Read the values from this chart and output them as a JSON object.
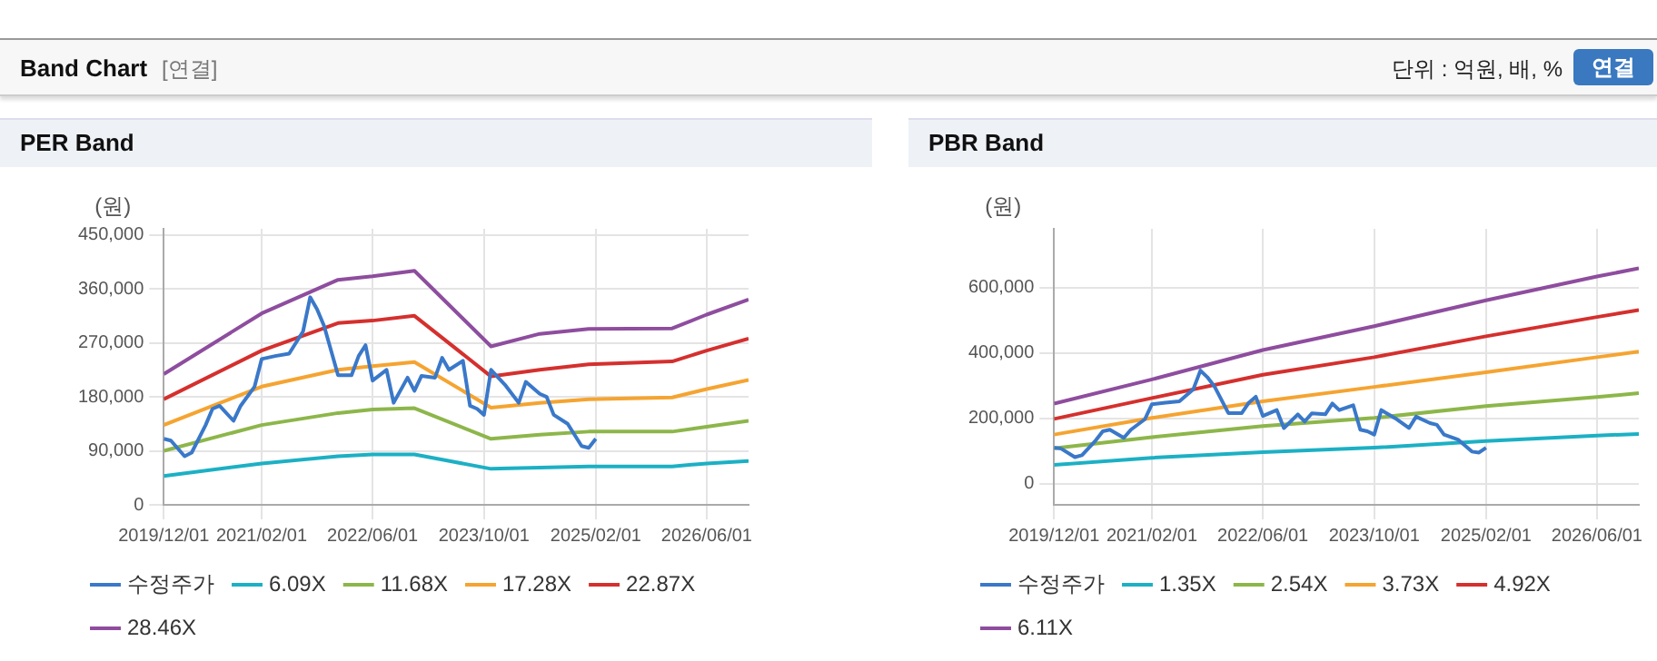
{
  "chart_data": [
    {
      "type": "line",
      "title": "PER Band",
      "ylabel": "(원)",
      "annotations": [
        "Band Chart",
        "[연결]",
        "단위 : 억원, 배, %",
        "연결"
      ],
      "xlim": [
        "2019-12-01",
        "2026-12-01"
      ],
      "xticks": [
        {
          "value": "2019-12-01",
          "label": "2019/12/01"
        },
        {
          "value": "2021-02-01",
          "label": "2021/02/01"
        },
        {
          "value": "2022-06-01",
          "label": "2022/06/01"
        },
        {
          "value": "2023-10-01",
          "label": "2023/10/01"
        },
        {
          "value": "2025-02-01",
          "label": "2025/02/01"
        },
        {
          "value": "2026-06-01",
          "label": "2026/06/01"
        }
      ],
      "ylim": [
        0,
        460000
      ],
      "yticks": [
        {
          "value": 0,
          "label": "0"
        },
        {
          "value": 90000,
          "label": "90,000"
        },
        {
          "value": 180000,
          "label": "180,000"
        },
        {
          "value": 270000,
          "label": "270,000"
        },
        {
          "value": 360000,
          "label": "360,000"
        },
        {
          "value": 450000,
          "label": "450,000"
        }
      ],
      "grid": true,
      "legend": "bottom",
      "marker": "none",
      "line_style": "solid",
      "series": [
        {
          "name": "수정주가",
          "color": "#3a78c9",
          "x": [
            "2019-12",
            "2020-01",
            "2020-03",
            "2020-04",
            "2020-06",
            "2020-07",
            "2020-08",
            "2020-10",
            "2020-11",
            "2021-01",
            "2021-02",
            "2021-04",
            "2021-06",
            "2021-08",
            "2021-09",
            "2021-10",
            "2021-11",
            "2022-01",
            "2022-03",
            "2022-04",
            "2022-05",
            "2022-06",
            "2022-08",
            "2022-09",
            "2022-11",
            "2022-12",
            "2023-01",
            "2023-03",
            "2023-04",
            "2023-05",
            "2023-07",
            "2023-08",
            "2023-09",
            "2023-10",
            "2023-11",
            "2024-01",
            "2024-03",
            "2024-04",
            "2024-06",
            "2024-07",
            "2024-08",
            "2024-10",
            "2024-12",
            "2025-01",
            "2025-02"
          ],
          "values": [
            110000,
            107000,
            81000,
            87000,
            133000,
            160000,
            165000,
            140000,
            165000,
            197000,
            243000,
            248000,
            252000,
            289000,
            346000,
            326000,
            298000,
            216000,
            216000,
            248000,
            266000,
            207000,
            225000,
            170000,
            212000,
            190000,
            215000,
            212000,
            245000,
            225000,
            240000,
            165000,
            160000,
            150000,
            225000,
            200000,
            170000,
            205000,
            185000,
            180000,
            150000,
            135000,
            98000,
            95000,
            110000
          ]
        },
        {
          "name": "6.09X",
          "color": "#1cb0c4",
          "x": [
            "2019-12",
            "2021-02",
            "2022-01",
            "2022-06",
            "2022-12",
            "2023-11",
            "2024-06",
            "2025-01",
            "2026-01",
            "2026-06",
            "2026-12"
          ],
          "values": [
            48000,
            69000,
            81000,
            84000,
            84000,
            60000,
            62000,
            64000,
            64000,
            69000,
            73000
          ]
        },
        {
          "name": "11.68X",
          "color": "#8db64a",
          "x": [
            "2019-12",
            "2021-02",
            "2022-01",
            "2022-06",
            "2022-12",
            "2023-11",
            "2024-06",
            "2025-01",
            "2026-01",
            "2026-06",
            "2026-12"
          ],
          "values": [
            90000,
            133000,
            153000,
            159000,
            161000,
            110000,
            117000,
            122000,
            122000,
            130000,
            140000
          ]
        },
        {
          "name": "17.28X",
          "color": "#f5a431",
          "x": [
            "2019-12",
            "2021-02",
            "2022-01",
            "2022-06",
            "2022-12",
            "2023-11",
            "2024-06",
            "2025-01",
            "2026-01",
            "2026-06",
            "2026-12"
          ],
          "values": [
            133000,
            197000,
            225000,
            231000,
            238000,
            162000,
            170000,
            176000,
            179000,
            193000,
            208000
          ]
        },
        {
          "name": "22.87X",
          "color": "#d4302e",
          "x": [
            "2019-12",
            "2021-02",
            "2022-01",
            "2022-06",
            "2022-12",
            "2023-11",
            "2024-06",
            "2025-01",
            "2026-01",
            "2026-06",
            "2026-12"
          ],
          "values": [
            176000,
            257000,
            303000,
            307000,
            315000,
            214000,
            225000,
            234000,
            239000,
            257000,
            277000
          ]
        },
        {
          "name": "28.46X",
          "color": "#8e4d9e",
          "x": [
            "2019-12",
            "2021-02",
            "2022-01",
            "2022-06",
            "2022-12",
            "2023-11",
            "2024-06",
            "2025-01",
            "2026-01",
            "2026-06",
            "2026-12"
          ],
          "values": [
            218000,
            319000,
            375000,
            381000,
            390000,
            264000,
            285000,
            293000,
            294000,
            317000,
            342000
          ]
        }
      ]
    },
    {
      "type": "line",
      "title": "PBR Band",
      "ylabel": "(원)",
      "xlim": [
        "2019-12-01",
        "2026-12-01"
      ],
      "xticks": [
        {
          "value": "2019-12-01",
          "label": "2019/12/01"
        },
        {
          "value": "2021-02-01",
          "label": "2021/02/01"
        },
        {
          "value": "2022-06-01",
          "label": "2022/06/01"
        },
        {
          "value": "2023-10-01",
          "label": "2023/10/01"
        },
        {
          "value": "2025-02-01",
          "label": "2025/02/01"
        },
        {
          "value": "2026-06-01",
          "label": "2026/06/01"
        }
      ],
      "ylim": [
        -65000,
        780000
      ],
      "yticks": [
        {
          "value": 0,
          "label": "0"
        },
        {
          "value": 200000,
          "label": "200,000"
        },
        {
          "value": 400000,
          "label": "400,000"
        },
        {
          "value": 600000,
          "label": "600,000"
        }
      ],
      "grid": true,
      "legend": "bottom",
      "marker": "none",
      "line_style": "solid",
      "series": [
        {
          "name": "수정주가",
          "color": "#3a78c9",
          "x": [
            "2019-12",
            "2020-01",
            "2020-03",
            "2020-04",
            "2020-06",
            "2020-07",
            "2020-08",
            "2020-10",
            "2020-11",
            "2021-01",
            "2021-02",
            "2021-04",
            "2021-06",
            "2021-08",
            "2021-09",
            "2021-10",
            "2021-11",
            "2022-01",
            "2022-03",
            "2022-04",
            "2022-05",
            "2022-06",
            "2022-08",
            "2022-09",
            "2022-11",
            "2022-12",
            "2023-01",
            "2023-03",
            "2023-04",
            "2023-05",
            "2023-07",
            "2023-08",
            "2023-09",
            "2023-10",
            "2023-11",
            "2024-01",
            "2024-03",
            "2024-04",
            "2024-06",
            "2024-07",
            "2024-08",
            "2024-10",
            "2024-12",
            "2025-01",
            "2025-02"
          ],
          "values": [
            110000,
            107000,
            81000,
            87000,
            133000,
            160000,
            165000,
            140000,
            165000,
            197000,
            243000,
            248000,
            252000,
            289000,
            346000,
            326000,
            298000,
            216000,
            216000,
            248000,
            266000,
            207000,
            225000,
            170000,
            212000,
            190000,
            215000,
            212000,
            245000,
            225000,
            240000,
            165000,
            160000,
            150000,
            225000,
            200000,
            170000,
            205000,
            185000,
            180000,
            150000,
            135000,
            98000,
            95000,
            110000
          ]
        },
        {
          "name": "1.35X",
          "color": "#1cb0c4",
          "x": [
            "2019-12",
            "2021-02",
            "2022-06",
            "2023-10",
            "2025-02",
            "2026-06",
            "2026-12"
          ],
          "values": [
            57000,
            79000,
            96000,
            110000,
            130000,
            147000,
            152000
          ]
        },
        {
          "name": "2.54X",
          "color": "#8db64a",
          "x": [
            "2019-12",
            "2021-02",
            "2022-06",
            "2023-10",
            "2025-02",
            "2026-06",
            "2026-12"
          ],
          "values": [
            108000,
            142000,
            176000,
            201000,
            237000,
            265000,
            277000
          ]
        },
        {
          "name": "3.73X",
          "color": "#f5a431",
          "x": [
            "2019-12",
            "2021-02",
            "2022-06",
            "2023-10",
            "2025-02",
            "2026-06",
            "2026-12"
          ],
          "values": [
            150000,
            201000,
            252000,
            296000,
            341000,
            387000,
            404000
          ]
        },
        {
          "name": "4.92X",
          "color": "#d4302e",
          "x": [
            "2019-12",
            "2021-02",
            "2022-06",
            "2023-10",
            "2025-02",
            "2026-06",
            "2026-12"
          ],
          "values": [
            198000,
            262000,
            333000,
            387000,
            451000,
            510000,
            531000
          ]
        },
        {
          "name": "6.11X",
          "color": "#8e4d9e",
          "x": [
            "2019-12",
            "2021-02",
            "2022-06",
            "2023-10",
            "2025-02",
            "2026-06",
            "2026-12"
          ],
          "values": [
            245000,
            319000,
            409000,
            482000,
            561000,
            634000,
            659000
          ]
        }
      ]
    }
  ]
}
